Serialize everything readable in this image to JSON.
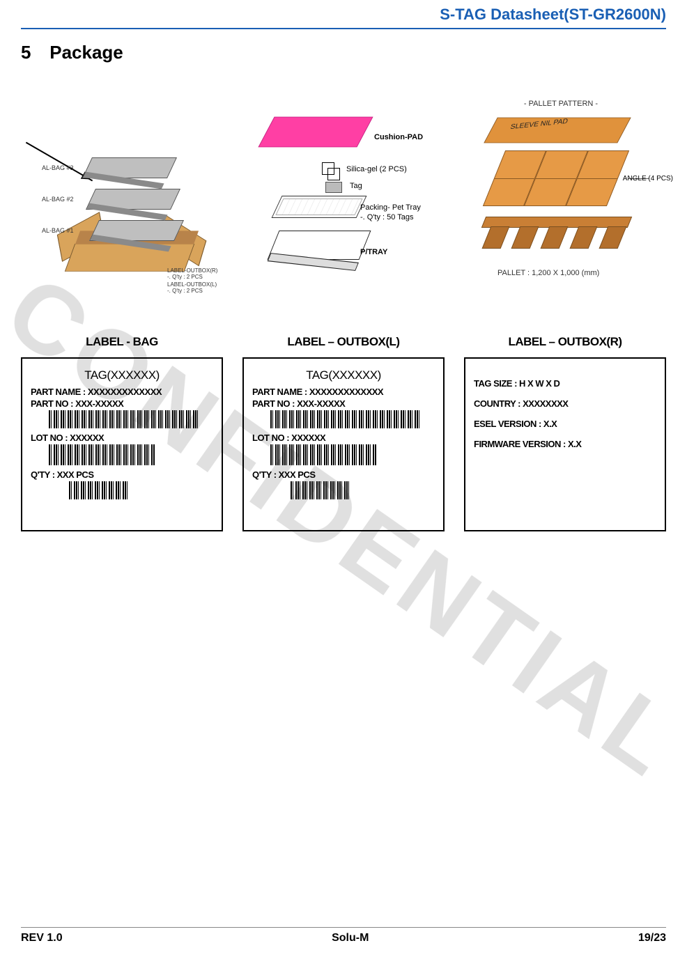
{
  "header": {
    "title": "S-TAG Datasheet(ST-GR2600N)"
  },
  "section": {
    "number": "5",
    "title": "Package"
  },
  "watermark": "CONFIDENTIAL",
  "diagram1": {
    "bag3": "AL-BAG #3",
    "bag2": "AL-BAG #2",
    "bag1": "AL-BAG #1",
    "outlabel_r": "LABEL-OUTBOX(R)\n-. Q'ty : 2 PCS",
    "outlabel_l": "LABEL-OUTBOX(L)\n-. Q'ty : 2 PCS"
  },
  "diagram2": {
    "cushion": "Cushion-PAD",
    "silica": "Silica-gel (2 PCS)",
    "tag": "Tag",
    "pet_tray": "Packing- Pet Tray\n-. Q'ty : 50 Tags",
    "p_tray": "P/TRAY"
  },
  "diagram3": {
    "title": "- PALLET PATTERN -",
    "sleeve": "SLEEVE NIL PAD",
    "angle": "ANGLE (4 PCS)",
    "pallet_size": "PALLET : 1,200 X 1,000 (mm)"
  },
  "labels": {
    "bag": {
      "title": "LABEL - BAG",
      "tag": "TAG(XXXXXX)",
      "partname": "PART NAME : XXXXXXXXXXXXX",
      "partno": "PART NO : XXX-XXXXX",
      "lotno": "LOT NO : XXXXXX",
      "qty": "Q'TY : XXX PCS"
    },
    "outboxL": {
      "title": "LABEL – OUTBOX(L)",
      "tag": "TAG(XXXXXX)",
      "partname": "PART NAME : XXXXXXXXXXXXX",
      "partno": "PART NO : XXX-XXXXX",
      "lotno": "LOT NO : XXXXXX",
      "qty": "Q'TY : XXX PCS"
    },
    "outboxR": {
      "title": "LABEL – OUTBOX(R)",
      "tagsize": "TAG SIZE : H X W X D",
      "country": "COUNTRY : XXXXXXXX",
      "esel": "ESEL VERSION : X.X",
      "firmware": "FIRMWARE VERSION : X.X"
    }
  },
  "footer": {
    "rev": "REV 1.0",
    "company": "Solu-M",
    "page": "19/23"
  },
  "colors": {
    "header_accent": "#1a5fb4",
    "cushion_fill": "#ff3fa4",
    "box_fill": "#d9a45b",
    "pallet_fill": "#e0923c"
  }
}
